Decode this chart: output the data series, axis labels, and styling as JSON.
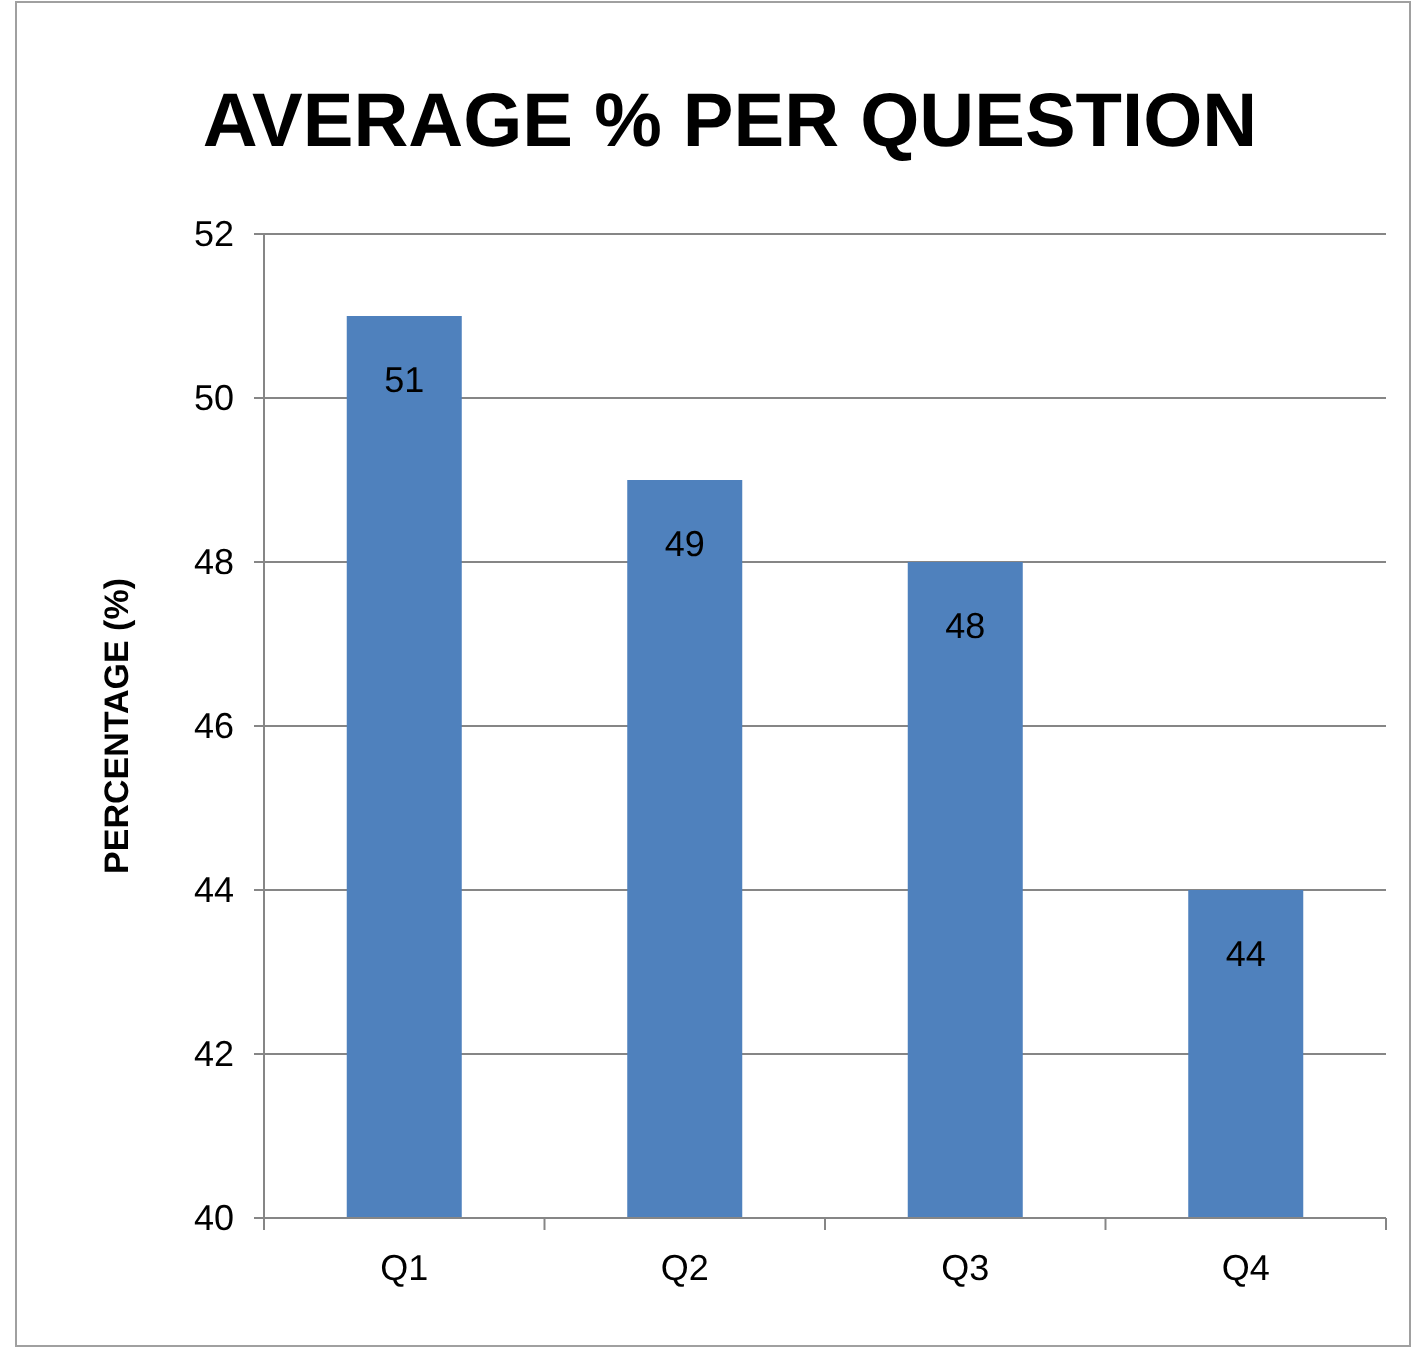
{
  "chart_data": {
    "type": "bar",
    "title": "AVERAGE % PER QUESTION",
    "ylabel": "PERCENTAGE (%)",
    "categories": [
      "Q1",
      "Q2",
      "Q3",
      "Q4"
    ],
    "values": [
      51,
      49,
      48,
      44
    ],
    "color": "#4f81bd",
    "ylim": [
      40,
      52
    ],
    "yticks": [
      40,
      42,
      44,
      46,
      48,
      50,
      52
    ],
    "grid": "y",
    "data_labels": true
  }
}
